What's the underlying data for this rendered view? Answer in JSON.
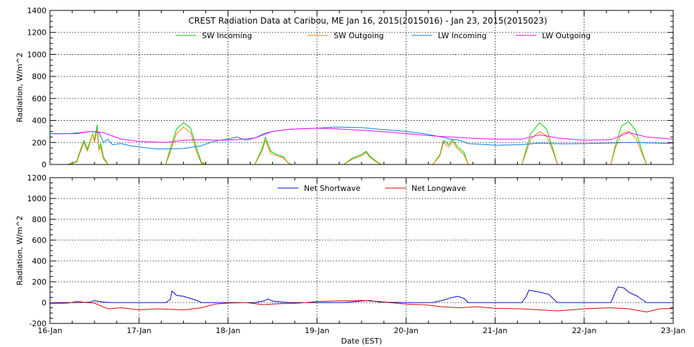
{
  "chart_data": [
    {
      "type": "line",
      "title": "CREST Radiation Data at Caribou, ME   Jan 16, 2015(2015016) - Jan 23, 2015(2015023)",
      "xlabel": "",
      "ylabel": "Radiation, W/m^2",
      "xlim": [
        0,
        7
      ],
      "ylim": [
        0,
        1400
      ],
      "y_ticks": [
        0,
        200,
        400,
        600,
        800,
        1000,
        1200,
        1400
      ],
      "grid": true,
      "legend_position": "top",
      "series": [
        {
          "name": "SW Incoming",
          "color": "#00cc00",
          "x": [
            0,
            0.2,
            0.3,
            0.38,
            0.42,
            0.48,
            0.5,
            0.53,
            0.55,
            0.57,
            0.6,
            0.65,
            0.72,
            1.0,
            1.3,
            1.35,
            1.42,
            1.5,
            1.58,
            1.65,
            1.7,
            1.75,
            2.0,
            2.3,
            2.38,
            2.42,
            2.48,
            2.55,
            2.62,
            2.68,
            2.72,
            3.0,
            3.3,
            3.4,
            3.5,
            3.55,
            3.6,
            3.68,
            3.72,
            4.0,
            4.3,
            4.38,
            4.42,
            4.48,
            4.52,
            4.58,
            4.65,
            4.7,
            5.0,
            5.3,
            5.4,
            5.5,
            5.58,
            5.65,
            5.7,
            6.0,
            6.3,
            6.35,
            6.42,
            6.5,
            6.58,
            6.65,
            6.7,
            7.0
          ],
          "y": [
            0,
            0,
            30,
            220,
            140,
            280,
            220,
            360,
            150,
            190,
            70,
            0,
            0,
            0,
            0,
            140,
            320,
            380,
            330,
            140,
            20,
            0,
            0,
            0,
            140,
            250,
            120,
            90,
            70,
            10,
            0,
            0,
            0,
            60,
            90,
            120,
            70,
            20,
            0,
            0,
            0,
            90,
            220,
            180,
            230,
            160,
            110,
            0,
            0,
            0,
            280,
            380,
            320,
            140,
            0,
            0,
            0,
            170,
            350,
            390,
            310,
            120,
            0,
            0
          ]
        },
        {
          "name": "SW Outgoing",
          "color": "#ee8000",
          "x": [
            0,
            0.2,
            0.3,
            0.38,
            0.42,
            0.48,
            0.5,
            0.53,
            0.55,
            0.57,
            0.6,
            0.65,
            0.72,
            1.0,
            1.3,
            1.35,
            1.42,
            1.5,
            1.58,
            1.65,
            1.7,
            1.75,
            2.0,
            2.3,
            2.38,
            2.42,
            2.48,
            2.55,
            2.62,
            2.68,
            2.72,
            3.0,
            3.3,
            3.4,
            3.5,
            3.55,
            3.6,
            3.68,
            3.72,
            4.0,
            4.3,
            4.38,
            4.42,
            4.48,
            4.52,
            4.58,
            4.65,
            4.7,
            5.0,
            5.3,
            5.4,
            5.5,
            5.58,
            5.65,
            5.7,
            6.0,
            6.3,
            6.35,
            6.42,
            6.5,
            6.58,
            6.65,
            6.7,
            7.0
          ],
          "y": [
            0,
            0,
            20,
            200,
            120,
            280,
            200,
            320,
            130,
            160,
            50,
            0,
            0,
            0,
            0,
            110,
            280,
            340,
            290,
            110,
            10,
            0,
            0,
            0,
            120,
            220,
            100,
            80,
            60,
            10,
            0,
            0,
            0,
            50,
            80,
            110,
            60,
            15,
            0,
            0,
            0,
            80,
            200,
            160,
            210,
            140,
            90,
            0,
            0,
            0,
            230,
            300,
            260,
            120,
            0,
            0,
            0,
            150,
            280,
            300,
            240,
            100,
            0,
            0
          ]
        },
        {
          "name": "LW Incoming",
          "color": "#0080e0",
          "x": [
            0,
            0.2,
            0.35,
            0.45,
            0.55,
            0.6,
            0.65,
            0.7,
            0.8,
            0.9,
            1.0,
            1.2,
            1.5,
            1.7,
            1.8,
            1.9,
            2.0,
            2.1,
            2.2,
            2.3,
            2.4,
            2.5,
            2.7,
            3.0,
            3.2,
            3.5,
            3.7,
            4.0,
            4.2,
            4.4,
            4.5,
            4.6,
            4.7,
            5.0,
            5.3,
            5.5,
            5.6,
            5.8,
            6.0,
            6.3,
            6.5,
            6.8,
            7.0
          ],
          "y": [
            280,
            280,
            290,
            300,
            290,
            200,
            230,
            180,
            190,
            170,
            160,
            140,
            145,
            170,
            200,
            220,
            230,
            250,
            220,
            240,
            280,
            300,
            320,
            330,
            340,
            335,
            320,
            300,
            280,
            250,
            230,
            220,
            190,
            175,
            180,
            195,
            190,
            188,
            190,
            195,
            200,
            195,
            190
          ]
        },
        {
          "name": "LW Outgoing",
          "color": "#ff00ff",
          "x": [
            0,
            0.3,
            0.45,
            0.6,
            0.8,
            1.0,
            1.3,
            1.5,
            1.7,
            1.9,
            2.1,
            2.3,
            2.5,
            2.7,
            3.0,
            3.2,
            3.5,
            3.8,
            4.0,
            4.3,
            4.5,
            4.7,
            5.0,
            5.3,
            5.5,
            5.7,
            6.0,
            6.3,
            6.5,
            6.7,
            7.0
          ],
          "y": [
            280,
            280,
            300,
            290,
            230,
            210,
            200,
            220,
            225,
            220,
            225,
            240,
            300,
            320,
            330,
            325,
            310,
            295,
            280,
            260,
            250,
            240,
            230,
            230,
            270,
            240,
            220,
            225,
            290,
            250,
            230
          ]
        }
      ]
    },
    {
      "type": "line",
      "title": "",
      "xlabel": "Date (EST)",
      "ylabel": "Radiation, W/m^2",
      "xlim": [
        0,
        7
      ],
      "ylim": [
        -200,
        1200
      ],
      "y_ticks": [
        -200,
        0,
        200,
        400,
        600,
        800,
        1000,
        1200
      ],
      "x_tick_labels": [
        "16-Jan",
        "17-Jan",
        "18-Jan",
        "19-Jan",
        "20-Jan",
        "21-Jan",
        "22-Jan",
        "23-Jan"
      ],
      "grid": true,
      "legend_position": "top",
      "series": [
        {
          "name": "Net Shortwave",
          "color": "#0000cc",
          "x": [
            0,
            0.3,
            0.45,
            0.5,
            0.55,
            0.6,
            0.7,
            1.0,
            1.3,
            1.35,
            1.37,
            1.42,
            1.5,
            1.58,
            1.65,
            1.7,
            2.0,
            2.3,
            2.4,
            2.45,
            2.5,
            2.6,
            2.7,
            3.0,
            3.3,
            3.5,
            3.6,
            3.7,
            4.0,
            4.3,
            4.4,
            4.5,
            4.58,
            4.65,
            4.7,
            5.0,
            5.3,
            5.35,
            5.38,
            5.5,
            5.6,
            5.65,
            5.7,
            6.0,
            6.3,
            6.35,
            6.38,
            6.45,
            6.5,
            6.6,
            6.65,
            6.7,
            7.0
          ],
          "y": [
            0,
            0,
            5,
            20,
            10,
            5,
            0,
            0,
            0,
            30,
            110,
            70,
            60,
            40,
            20,
            0,
            0,
            0,
            15,
            35,
            15,
            5,
            0,
            0,
            0,
            15,
            20,
            5,
            0,
            0,
            20,
            45,
            60,
            40,
            0,
            0,
            0,
            60,
            120,
            100,
            80,
            40,
            0,
            0,
            0,
            100,
            150,
            140,
            100,
            60,
            30,
            0,
            0
          ]
        },
        {
          "name": "Net Longwave",
          "color": "#dd0000",
          "x": [
            0,
            0.2,
            0.3,
            0.5,
            0.65,
            0.8,
            1.0,
            1.2,
            1.5,
            1.7,
            1.85,
            2.0,
            2.2,
            2.4,
            2.6,
            2.8,
            3.0,
            3.2,
            3.5,
            3.7,
            4.0,
            4.2,
            4.4,
            4.6,
            4.8,
            5.0,
            5.3,
            5.5,
            5.7,
            6.0,
            6.3,
            6.5,
            6.7,
            6.85,
            7.0
          ],
          "y": [
            -10,
            -5,
            10,
            -5,
            -60,
            -50,
            -70,
            -60,
            -70,
            -50,
            -15,
            -5,
            0,
            -20,
            -10,
            -5,
            10,
            15,
            20,
            10,
            -15,
            -20,
            -40,
            -50,
            -40,
            -55,
            -60,
            -70,
            -80,
            -60,
            -50,
            -60,
            -90,
            -60,
            -55
          ]
        }
      ]
    }
  ]
}
